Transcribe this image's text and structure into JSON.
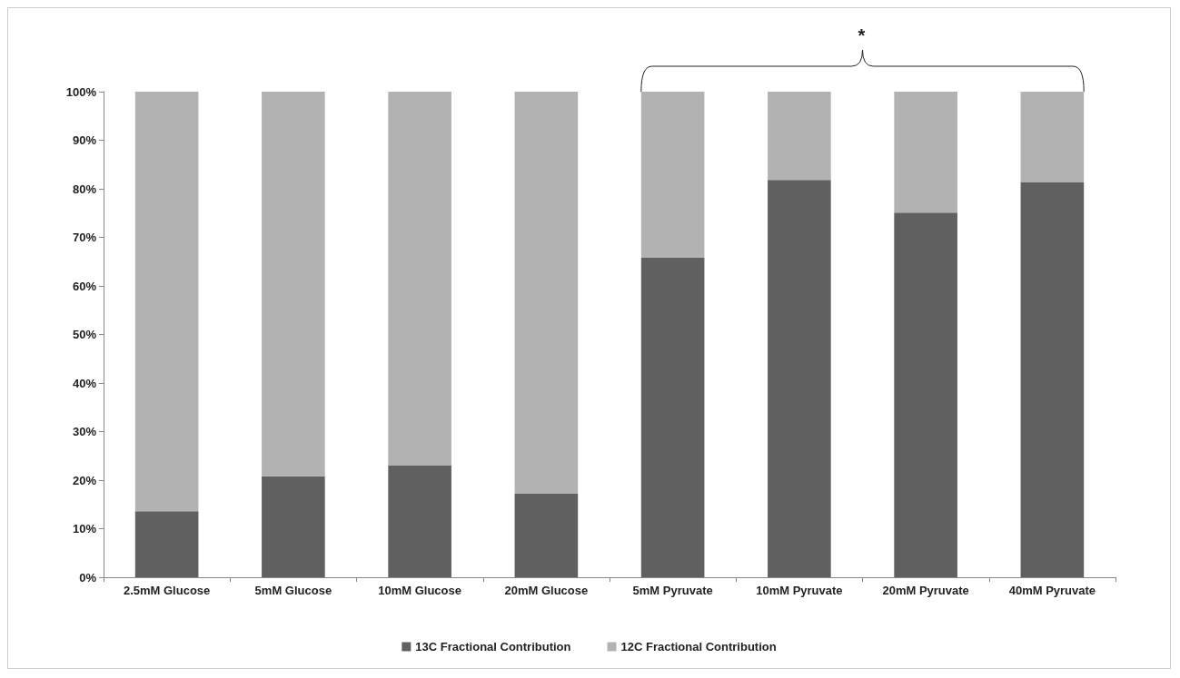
{
  "chart_data": {
    "type": "bar",
    "stacked": true,
    "categories": [
      "2.5mM Glucose",
      "5mM Glucose",
      "10mM Glucose",
      "20mM Glucose",
      "5mM Pyruvate",
      "10mM Pyruvate",
      "20mM Pyruvate",
      "40mM Pyruvate"
    ],
    "series": [
      {
        "name": "13C Fractional Contribution",
        "color": "#606060",
        "values": [
          13.6,
          20.8,
          23.1,
          17.3,
          65.8,
          81.8,
          75.1,
          81.4
        ]
      },
      {
        "name": "12C Fractional Contribution",
        "color": "#b2b2b2",
        "values": [
          86.4,
          79.2,
          76.9,
          82.7,
          34.2,
          18.2,
          24.9,
          18.6
        ]
      }
    ],
    "ylim": [
      0,
      100
    ],
    "yticks": [
      {
        "value": 0,
        "label": "0%"
      },
      {
        "value": 10,
        "label": "10%"
      },
      {
        "value": 20,
        "label": "20%"
      },
      {
        "value": 30,
        "label": "30%"
      },
      {
        "value": 40,
        "label": "40%"
      },
      {
        "value": 50,
        "label": "50%"
      },
      {
        "value": 60,
        "label": "60%"
      },
      {
        "value": 70,
        "label": "70%"
      },
      {
        "value": 80,
        "label": "80%"
      },
      {
        "value": 90,
        "label": "90%"
      },
      {
        "value": 100,
        "label": "100%"
      }
    ],
    "grid": false,
    "legend": "bottom",
    "annotations": [
      "*"
    ]
  }
}
